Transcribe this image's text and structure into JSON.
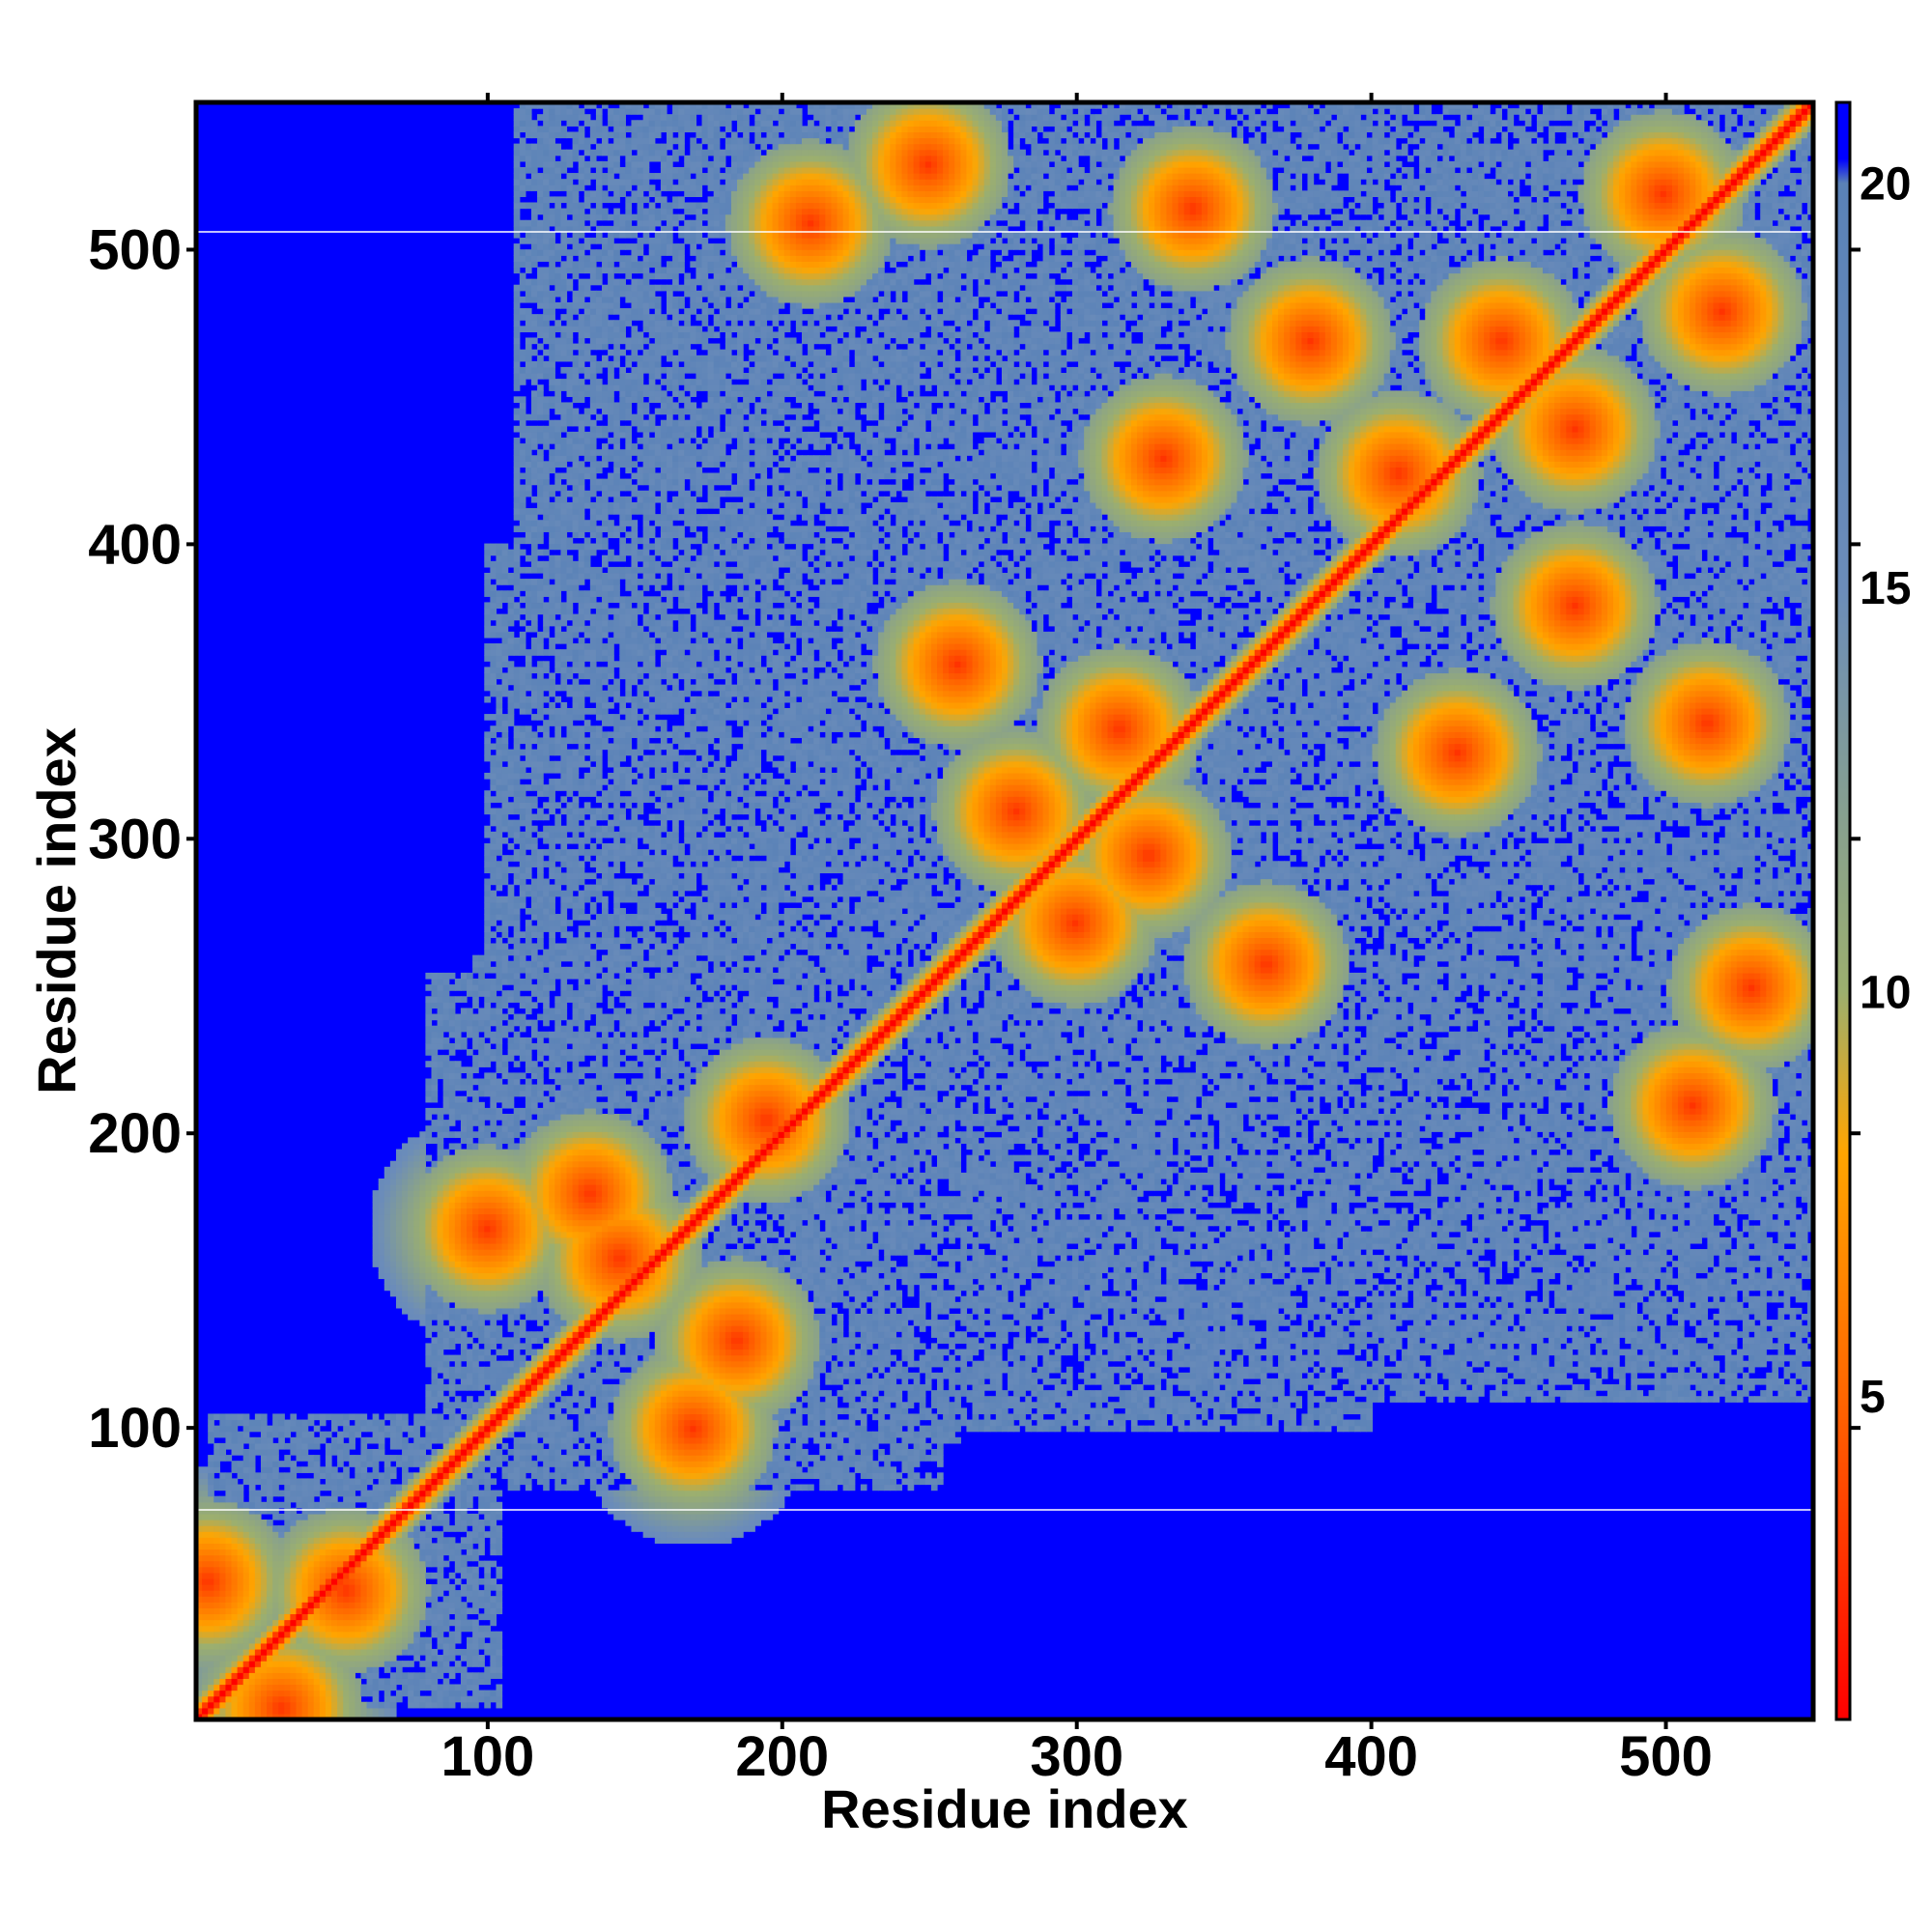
{
  "chart_data": {
    "type": "heatmap",
    "title": "",
    "xlabel": "Residue index",
    "ylabel": "Residue index",
    "xlim": [
      1,
      550
    ],
    "ylim": [
      1,
      550
    ],
    "x_ticks": [
      100,
      200,
      300,
      400,
      500
    ],
    "y_ticks": [
      100,
      200,
      300,
      400,
      500
    ],
    "x_tick_labels": [
      "100",
      "200",
      "300",
      "400",
      "500"
    ],
    "y_tick_labels": [
      "100",
      "200",
      "300",
      "400",
      "500"
    ],
    "colorbar": {
      "ticks": [
        5,
        10,
        15,
        20
      ],
      "tick_labels": [
        "5",
        "10",
        "15",
        "20"
      ],
      "range": [
        1,
        21
      ],
      "colors": [
        {
          "value": 1,
          "color": "#ff0000"
        },
        {
          "value": 5,
          "color": "#ff6600"
        },
        {
          "value": 8,
          "color": "#ffa500"
        },
        {
          "value": 10,
          "color": "#9caf6e"
        },
        {
          "value": 15,
          "color": "#6b8cba"
        },
        {
          "value": 20,
          "color": "#5a82b7"
        },
        {
          "value": 20.3,
          "color": "#0000ff"
        }
      ]
    },
    "background_value": 21,
    "background_color": "#0000ff",
    "cutoff_value": 20,
    "diagonal_value": 1,
    "contact_regions": [
      {
        "x": [
          5,
          105
        ],
        "y": [
          5,
          105
        ]
      },
      {
        "x": [
          95,
          255
        ],
        "y": [
          80,
          260
        ]
      },
      {
        "x": [
          225,
          385
        ],
        "y": [
          215,
          385
        ]
      },
      {
        "x": [
          330,
          550
        ],
        "y": [
          290,
          550
        ]
      },
      {
        "x": [
          100,
          340
        ],
        "y": [
          180,
          400
        ]
      },
      {
        "x": [
          210,
          550
        ],
        "y": [
          110,
          330
        ]
      },
      {
        "x": [
          240,
          550
        ],
        "y": [
          280,
          550
        ]
      },
      {
        "x": [
          90,
          130
        ],
        "y": [
          130,
          180
        ]
      }
    ],
    "off_diagonal_contacts": [
      {
        "x": 30,
        "y": 5
      },
      {
        "x": 5,
        "y": 48
      },
      {
        "x": 52,
        "y": 45
      },
      {
        "x": 135,
        "y": 180
      },
      {
        "x": 185,
        "y": 130
      },
      {
        "x": 145,
        "y": 158
      },
      {
        "x": 195,
        "y": 205
      },
      {
        "x": 100,
        "y": 168
      },
      {
        "x": 170,
        "y": 100
      },
      {
        "x": 280,
        "y": 310
      },
      {
        "x": 325,
        "y": 295
      },
      {
        "x": 300,
        "y": 272
      },
      {
        "x": 315,
        "y": 338
      },
      {
        "x": 260,
        "y": 360
      },
      {
        "x": 365,
        "y": 258
      },
      {
        "x": 410,
        "y": 425
      },
      {
        "x": 445,
        "y": 470
      },
      {
        "x": 470,
        "y": 440
      },
      {
        "x": 500,
        "y": 520
      },
      {
        "x": 520,
        "y": 480
      },
      {
        "x": 380,
        "y": 470
      },
      {
        "x": 470,
        "y": 380
      },
      {
        "x": 340,
        "y": 515
      },
      {
        "x": 515,
        "y": 340
      },
      {
        "x": 250,
        "y": 530
      },
      {
        "x": 530,
        "y": 250
      },
      {
        "x": 210,
        "y": 510
      },
      {
        "x": 510,
        "y": 210
      },
      {
        "x": 430,
        "y": 330
      },
      {
        "x": 330,
        "y": 430
      }
    ],
    "grid": false,
    "legend": "none"
  }
}
